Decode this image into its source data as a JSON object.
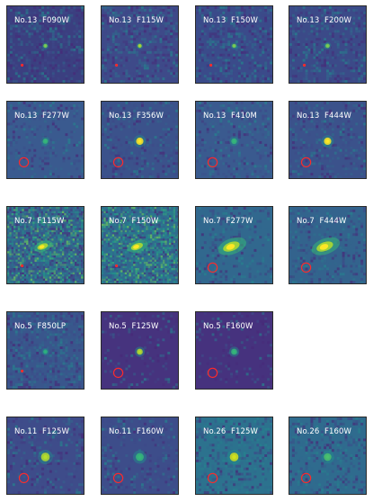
{
  "figure": {
    "stamps": [
      {
        "id": "s1",
        "object": "No.13",
        "filter": "F090W",
        "label": "No.13  F090W",
        "bg": "#3b3f80",
        "noise": 0.55,
        "source": {
          "size": 1.2,
          "color": "#7ad151"
        },
        "marker": "dot",
        "extended": false
      },
      {
        "id": "s2",
        "object": "No.13",
        "filter": "F115W",
        "label": "No.13  F115W",
        "bg": "#3e4a89",
        "noise": 0.55,
        "source": {
          "size": 1.2,
          "color": "#a8db34"
        },
        "marker": "dot",
        "extended": false
      },
      {
        "id": "s3",
        "object": "No.13",
        "filter": "F150W",
        "label": "No.13  F150W",
        "bg": "#3a4b8a",
        "noise": 0.55,
        "source": {
          "size": 1.2,
          "color": "#7ad151"
        },
        "marker": "dot",
        "extended": false
      },
      {
        "id": "s4",
        "object": "No.13",
        "filter": "F200W",
        "label": "No.13  F200W",
        "bg": "#3b4a88",
        "noise": 0.5,
        "source": {
          "size": 1.3,
          "color": "#7ad151"
        },
        "marker": "dot",
        "extended": false
      },
      {
        "id": "s5",
        "object": "No.13",
        "filter": "F277W",
        "label": "No.13  F277W",
        "bg": "#3a5a8f",
        "noise": 0.3,
        "source": {
          "size": 1.6,
          "color": "#35b779"
        },
        "marker": "circle",
        "extended": false
      },
      {
        "id": "s6",
        "object": "No.13",
        "filter": "F356W",
        "label": "No.13  F356W",
        "bg": "#3b528b",
        "noise": 0.3,
        "source": {
          "size": 2.2,
          "color": "#fde725"
        },
        "marker": "circle",
        "extended": false
      },
      {
        "id": "s7",
        "object": "No.13",
        "filter": "F410M",
        "label": "No.13  F410M",
        "bg": "#3a5a8f",
        "noise": 0.35,
        "source": {
          "size": 1.7,
          "color": "#35b779"
        },
        "marker": "circle",
        "extended": false
      },
      {
        "id": "s8",
        "object": "No.13",
        "filter": "F444W",
        "label": "No.13  F444W",
        "bg": "#3b528b",
        "noise": 0.35,
        "source": {
          "size": 2.2,
          "color": "#fde725"
        },
        "marker": "circle",
        "extended": false
      },
      {
        "id": "s9",
        "object": "No.7",
        "filter": "F115W",
        "label": "No.7  F115W",
        "bg": "#35608d",
        "noise": 0.95,
        "source": {
          "size": 1.8,
          "color": "#fde725"
        },
        "marker": "dot",
        "extended": true
      },
      {
        "id": "s10",
        "object": "No.7",
        "filter": "F150W",
        "label": "No.7  F150W",
        "bg": "#2f6c8e",
        "noise": 0.85,
        "source": {
          "size": 2.0,
          "color": "#fde725"
        },
        "marker": "dot",
        "extended": true
      },
      {
        "id": "s11",
        "object": "No.7",
        "filter": "F277W",
        "label": "No.7  F277W",
        "bg": "#31688e",
        "noise": 0.35,
        "source": {
          "size": 2.8,
          "color": "#fde725"
        },
        "marker": "circle",
        "extended": true
      },
      {
        "id": "s12",
        "object": "No.7",
        "filter": "F444W",
        "label": "No.7  F444W",
        "bg": "#33638d",
        "noise": 0.35,
        "source": {
          "size": 2.8,
          "color": "#fde725"
        },
        "marker": "circle",
        "extended": true
      },
      {
        "id": "s13",
        "object": "No.5",
        "filter": "F850LP",
        "label": "No.5  F850LP",
        "bg": "#39568c",
        "noise": 0.55,
        "source": {
          "size": 1.3,
          "color": "#2db27d"
        },
        "marker": "dot",
        "extended": false
      },
      {
        "id": "s14",
        "object": "No.5",
        "filter": "F125W",
        "label": "No.5  F125W",
        "bg": "#46337e",
        "noise": 0.15,
        "source": {
          "size": 1.8,
          "color": "#b5de2b"
        },
        "marker": "circle",
        "extended": false
      },
      {
        "id": "s15",
        "object": "No.5",
        "filter": "F160W",
        "label": "No.5  F160W",
        "bg": "#46327e",
        "noise": 0.15,
        "source": {
          "size": 1.8,
          "color": "#35b779"
        },
        "marker": "circle",
        "extended": false
      },
      {
        "id": "s16",
        "object": "No.11",
        "filter": "F125W",
        "label": "No.11  F125W",
        "bg": "#3e4c8a",
        "noise": 0.3,
        "source": {
          "size": 2.6,
          "color": "#b5de2b"
        },
        "marker": "circle",
        "extended": false
      },
      {
        "id": "s17",
        "object": "No.11",
        "filter": "F160W",
        "label": "No.11  F160W",
        "bg": "#3d4d8a",
        "noise": 0.3,
        "source": {
          "size": 2.4,
          "color": "#35b779"
        },
        "marker": "circle",
        "extended": false
      },
      {
        "id": "s18",
        "object": "No.26",
        "filter": "F125W",
        "label": "No.26  F125W",
        "bg": "#2c728e",
        "noise": 0.45,
        "source": {
          "size": 2.6,
          "color": "#d2e21b"
        },
        "marker": "circle",
        "extended": false
      },
      {
        "id": "s19",
        "object": "No.26",
        "filter": "F160W",
        "label": "No.26  F160W",
        "bg": "#2f6b8e",
        "noise": 0.45,
        "source": {
          "size": 2.3,
          "color": "#4ac16d"
        },
        "marker": "circle",
        "extended": false
      }
    ],
    "colors": {
      "marker": "#ff2a2a",
      "label": "#ffffff",
      "frame": "#2a2a2a"
    }
  }
}
